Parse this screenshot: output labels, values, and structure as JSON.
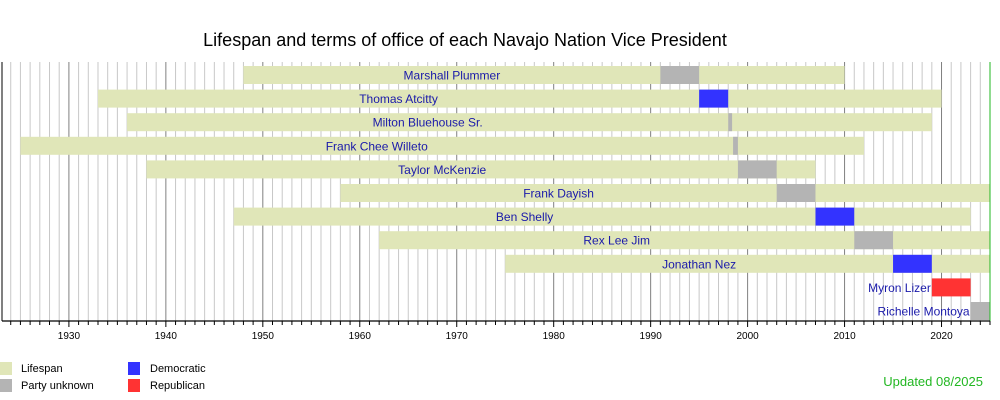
{
  "chart_data": {
    "type": "timeline",
    "title": "Lifespan and terms of office of each Navajo Nation Vice President",
    "xlim": [
      1923.1,
      2025
    ],
    "x_ticks": [
      1930,
      1940,
      1950,
      1960,
      1970,
      1980,
      1990,
      2000,
      2010,
      2020
    ],
    "grid": "vertical lines every year, darker every 10 years",
    "colors": {
      "lifespan": "#e0e6b8",
      "unknown": "#b4b4b4",
      "democratic": "#3333ff",
      "republican": "#ff3333",
      "label": "#1a1aaa",
      "updated": "#22b722"
    },
    "rows": [
      {
        "name": "Marshall Plummer",
        "life": [
          1948,
          2010
        ],
        "office": [
          1991,
          1995
        ],
        "party": "unknown"
      },
      {
        "name": "Thomas Atcitty",
        "life": [
          1933,
          2020
        ],
        "office": [
          1995,
          1998
        ],
        "party": "democratic"
      },
      {
        "name": "Milton Bluehouse Sr.",
        "life": [
          1936,
          2019
        ],
        "office": [
          1998,
          1998.4
        ],
        "party": "unknown"
      },
      {
        "name": "Frank Chee Willeto",
        "life": [
          1925,
          2012
        ],
        "office": [
          1998.5,
          1999
        ],
        "party": "unknown"
      },
      {
        "name": "Taylor McKenzie",
        "life": [
          1938,
          2007
        ],
        "office": [
          1999,
          2003
        ],
        "party": "unknown"
      },
      {
        "name": "Frank Dayish",
        "life": [
          1958,
          2025
        ],
        "office": [
          2003,
          2007
        ],
        "party": "unknown"
      },
      {
        "name": "Ben Shelly",
        "life": [
          1947,
          2023
        ],
        "office": [
          2007,
          2011
        ],
        "party": "democratic"
      },
      {
        "name": "Rex Lee Jim",
        "life": [
          1962,
          2025
        ],
        "office": [
          2011,
          2015
        ],
        "party": "unknown"
      },
      {
        "name": "Jonathan Nez",
        "life": [
          1975,
          2025
        ],
        "office": [
          2015,
          2019
        ],
        "party": "democratic"
      },
      {
        "name": "Myron Lizer",
        "life": null,
        "office": [
          2019,
          2023
        ],
        "party": "republican"
      },
      {
        "name": "Richelle Montoya",
        "life": null,
        "office": [
          2023,
          2025
        ],
        "party": "unknown"
      }
    ],
    "legend": [
      {
        "label": "Lifespan",
        "key": "lifespan"
      },
      {
        "label": "Party unknown",
        "key": "unknown"
      },
      {
        "label": "Democratic",
        "key": "democratic"
      },
      {
        "label": "Republican",
        "key": "republican"
      }
    ],
    "legend_placement": "bottom-left",
    "annotation": "Updated 08/2025"
  }
}
